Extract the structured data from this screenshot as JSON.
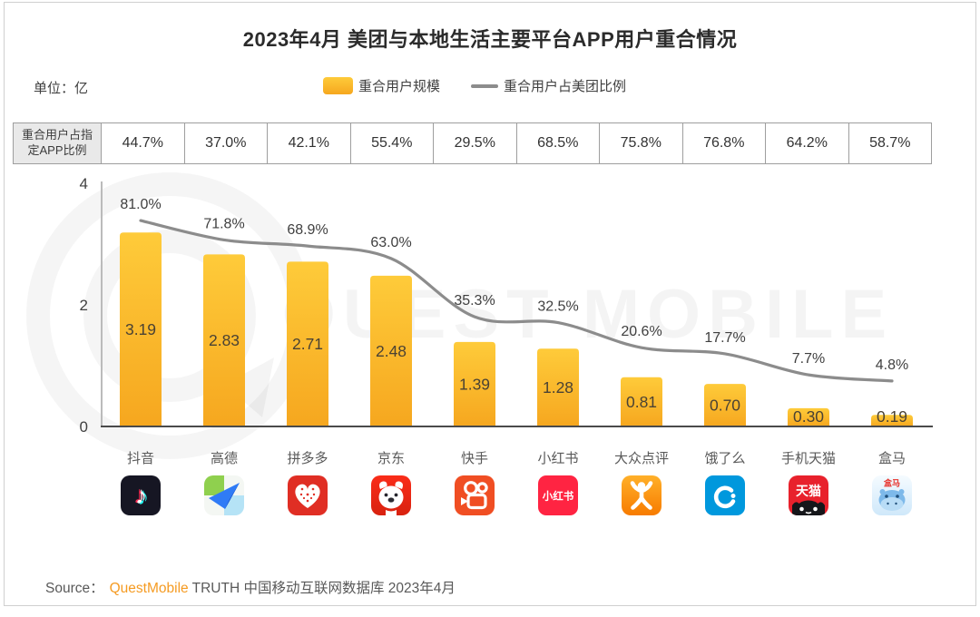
{
  "page": {
    "title": "2023年4月 美团与本地生活主要平台APP用户重合情况",
    "unit_label": "单位：亿",
    "legend": {
      "bar_label": "重合用户规模",
      "line_label": "重合用户占美团比例"
    },
    "table_header": "重合用户占指定APP比例",
    "watermark": "QUEST MOBILE",
    "source": {
      "prefix": "Source：",
      "brand": "QuestMobile",
      "suffix": "TRUTH 中国移动互联网数据库 2023年4月"
    }
  },
  "colors": {
    "bar_top": "#FECB3A",
    "bar_bottom": "#F6A71F",
    "line": "#8C8C8C",
    "axis": "#4A4A4A",
    "axis_left": "#BBBBBB",
    "table_header_bg": "#E9E9E9",
    "brand_orange": "#F59B22",
    "bar_label": "#4A4234",
    "pct_label": "#3F3F3F"
  },
  "chart_data": {
    "type": "bar",
    "title": "2023年4月 美团与本地生活主要平台APP用户重合情况",
    "categories": [
      "抖音",
      "高德",
      "拼多多",
      "京东",
      "快手",
      "小红书",
      "大众点评",
      "饿了么",
      "手机天猫",
      "盒马"
    ],
    "icons": [
      "douyin",
      "amap",
      "pinduoduo",
      "jd",
      "kuaishou",
      "xiaohongshu",
      "dianping",
      "eleme",
      "tmall",
      "hema"
    ],
    "series": [
      {
        "name": "重合用户规模",
        "type": "bar",
        "unit": "亿",
        "values": [
          3.19,
          2.83,
          2.71,
          2.48,
          1.39,
          1.28,
          0.81,
          0.7,
          0.3,
          0.19
        ],
        "labels": [
          "3.19",
          "2.83",
          "2.71",
          "2.48",
          "1.39",
          "1.28",
          "0.81",
          "0.70",
          "0.30",
          "0.19"
        ]
      },
      {
        "name": "重合用户占美团比例",
        "type": "line",
        "unit": "%",
        "values": [
          81.0,
          71.8,
          68.9,
          63.0,
          35.3,
          32.5,
          20.6,
          17.7,
          7.7,
          4.8
        ],
        "labels": [
          "81.0%",
          "71.8%",
          "68.9%",
          "63.0%",
          "35.3%",
          "32.5%",
          "20.6%",
          "17.7%",
          "7.7%",
          "4.8%"
        ]
      },
      {
        "name": "重合用户占指定APP比例",
        "type": "table-row",
        "unit": "%",
        "values": [
          44.7,
          37.0,
          42.1,
          55.4,
          29.5,
          68.5,
          75.8,
          76.8,
          64.2,
          58.7
        ],
        "labels": [
          "44.7%",
          "37.0%",
          "42.1%",
          "55.4%",
          "29.5%",
          "68.5%",
          "75.8%",
          "76.8%",
          "64.2%",
          "58.7%"
        ]
      }
    ],
    "ylabel": "单位：亿",
    "ylim": [
      0,
      4
    ],
    "yticks": [
      0,
      2,
      4
    ],
    "grid": false,
    "legend_position": "top"
  }
}
